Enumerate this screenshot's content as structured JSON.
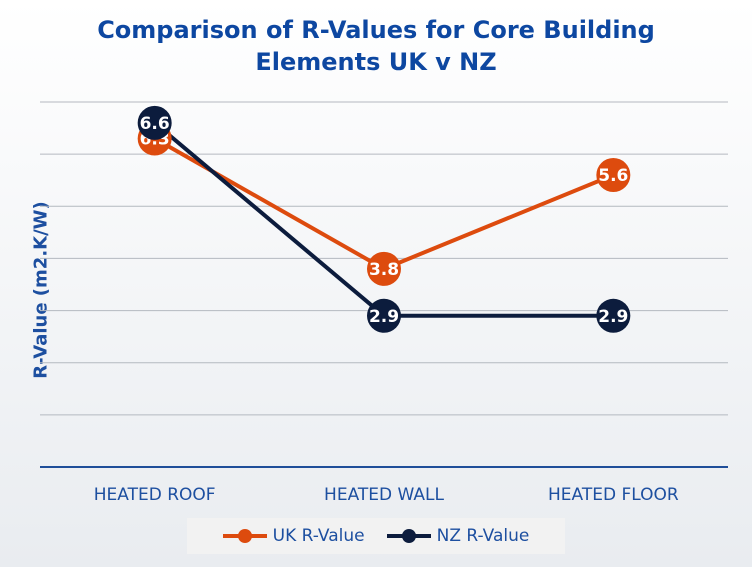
{
  "chart_data": {
    "type": "line",
    "title_lines": [
      "Comparison of R-Values for Core Building",
      "Elements UK v NZ"
    ],
    "xlabel": "",
    "ylabel": "R-Value (m2.K/W)",
    "categories": [
      "HEATED ROOF",
      "HEATED WALL",
      "HEATED FLOOR"
    ],
    "ylim": [
      0,
      7
    ],
    "grid": true,
    "legend_position": "bottom",
    "series": [
      {
        "name": "UK R-Value",
        "values": [
          6.3,
          3.8,
          5.6
        ],
        "labels": [
          "6.3",
          "3.8",
          "5.6"
        ],
        "color": "#dd4b0e"
      },
      {
        "name": "NZ R-Value",
        "values": [
          6.6,
          2.9,
          2.9
        ],
        "labels": [
          "6.6",
          "2.9",
          "2.9"
        ],
        "color": "#0c1c3d"
      }
    ]
  },
  "colors": {
    "title": "#0d47a1",
    "axis": "#1d4fa0",
    "grid": "#b4b9c0",
    "baseline": "#1f4e99"
  }
}
